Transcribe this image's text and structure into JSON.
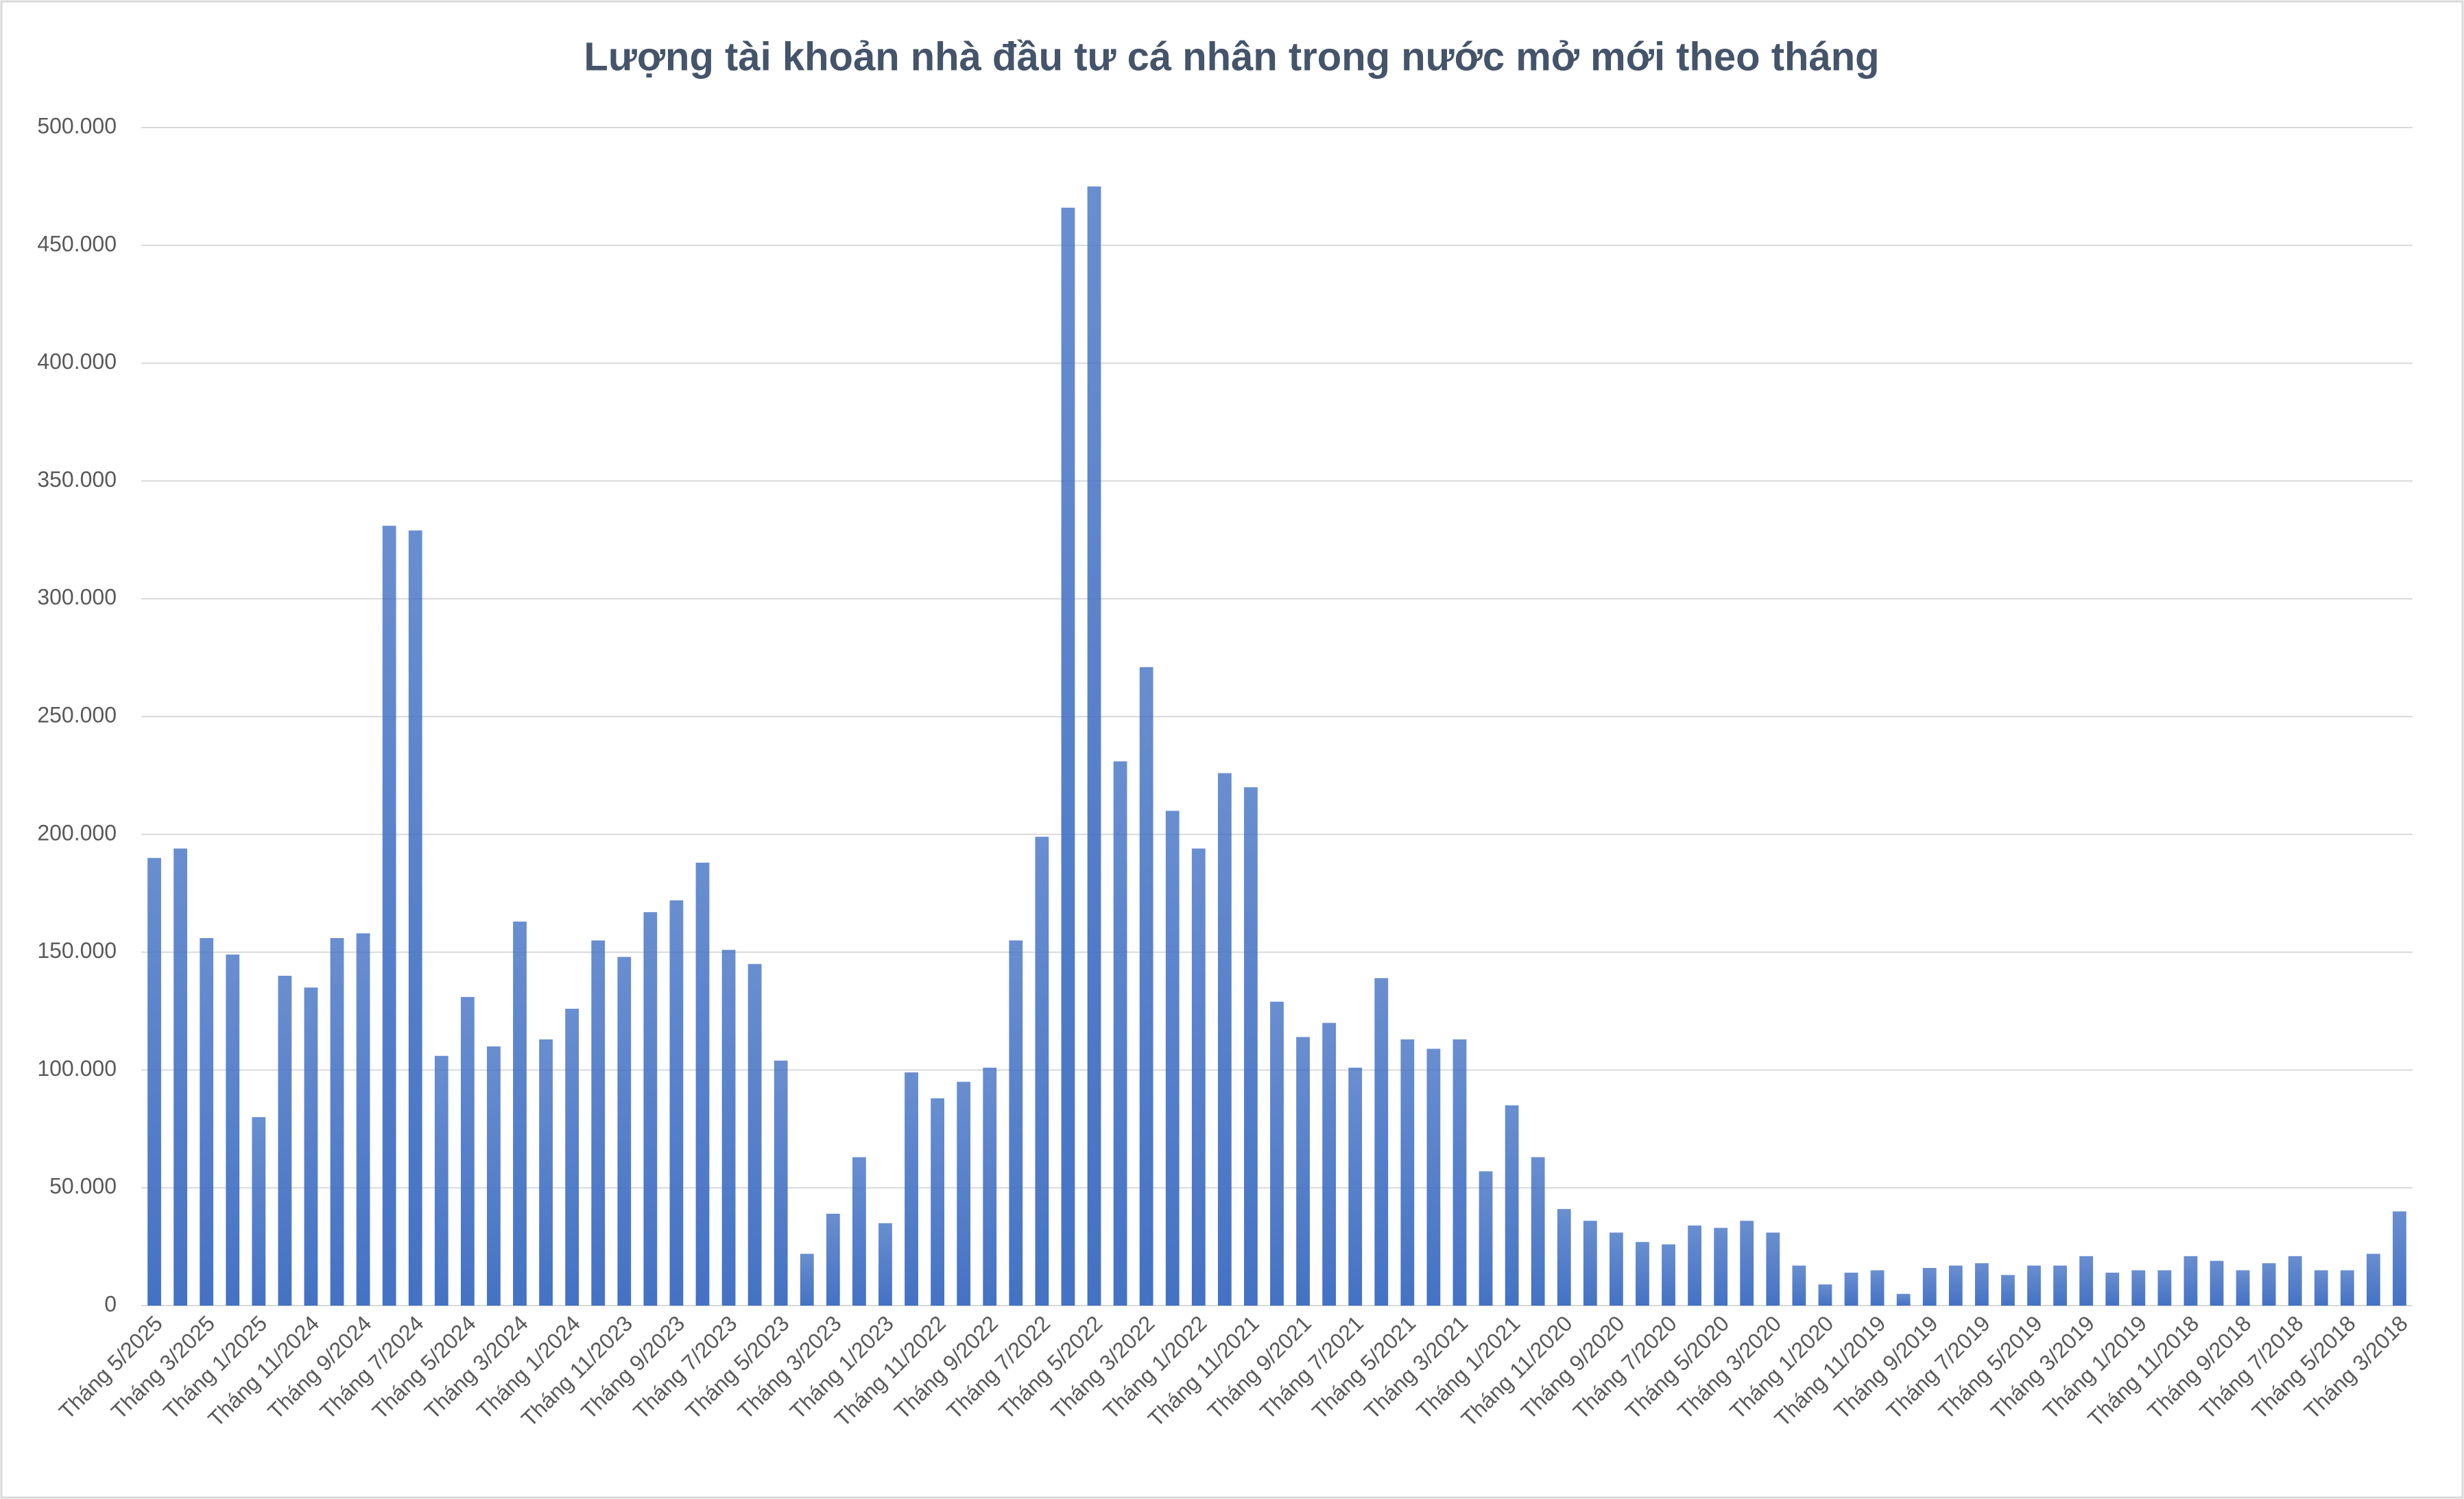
{
  "chart_data": {
    "type": "bar",
    "title": "Lượng tài khoản nhà đầu tư cá nhân trong nước mở mới theo tháng",
    "categories": [
      "Tháng 5/2025",
      null,
      "Tháng 3/2025",
      null,
      "Tháng 1/2025",
      null,
      "Tháng 11/2024",
      null,
      "Tháng 9/2024",
      null,
      "Tháng 7/2024",
      null,
      "Tháng 5/2024",
      null,
      "Tháng 3/2024",
      null,
      "Tháng 1/2024",
      null,
      "Tháng 11/2023",
      null,
      "Tháng 9/2023",
      null,
      "Tháng 7/2023",
      null,
      "Tháng 5/2023",
      null,
      "Tháng 3/2023",
      null,
      "Tháng 1/2023",
      null,
      "Tháng 11/2022",
      null,
      "Tháng 9/2022",
      null,
      "Tháng 7/2022",
      null,
      "Tháng 5/2022",
      null,
      "Tháng 3/2022",
      null,
      "Tháng 1/2022",
      null,
      "Tháng 11/2021",
      null,
      "Tháng 9/2021",
      null,
      "Tháng 7/2021",
      null,
      "Tháng 5/2021",
      null,
      "Tháng 3/2021",
      null,
      "Tháng 1/2021",
      null,
      "Tháng 11/2020",
      null,
      "Tháng 9/2020",
      null,
      "Tháng 7/2020",
      null,
      "Tháng 5/2020",
      null,
      "Tháng 3/2020",
      null,
      "Tháng 1/2020",
      null,
      "Tháng 11/2019",
      null,
      "Tháng 9/2019",
      null,
      "Tháng 7/2019",
      null,
      "Tháng 5/2019",
      null,
      "Tháng 3/2019",
      null,
      "Tháng 1/2019",
      null,
      "Tháng 11/2018",
      null,
      "Tháng 9/2018",
      null,
      "Tháng 7/2018",
      null,
      "Tháng 5/2018",
      null,
      "Tháng 3/2018"
    ],
    "values": [
      190000,
      194000,
      156000,
      149000,
      80000,
      140000,
      135000,
      156000,
      158000,
      331000,
      329000,
      106000,
      131000,
      110000,
      163000,
      113000,
      126000,
      155000,
      148000,
      167000,
      172000,
      188000,
      151000,
      145000,
      104000,
      22000,
      39000,
      63000,
      35000,
      99000,
      88000,
      95000,
      101000,
      155000,
      199000,
      466000,
      475000,
      231000,
      271000,
      210000,
      194000,
      226000,
      220000,
      129000,
      114000,
      120000,
      101000,
      139000,
      113000,
      109000,
      113000,
      57000,
      85000,
      63000,
      41000,
      36000,
      31000,
      27000,
      26000,
      34000,
      33000,
      36000,
      31000,
      17000,
      9000,
      14000,
      15000,
      5000,
      16000,
      17000,
      18000,
      13000,
      17000,
      17000,
      21000,
      14000,
      15000,
      15000,
      21000,
      19000,
      15000,
      18000,
      21000,
      15000,
      15000,
      22000,
      40000
    ],
    "color": "#4472c4",
    "ylim": [
      0,
      500000
    ],
    "yticks": [
      0,
      {
        "value": 50000,
        "label": "50.000"
      },
      {
        "value": 100000,
        "label": "100.000"
      },
      {
        "value": 150000,
        "label": "150.000"
      },
      {
        "value": 200000,
        "label": "200.000"
      },
      {
        "value": 250000,
        "label": "250.000"
      },
      {
        "value": 300000,
        "label": "300.000"
      },
      {
        "value": 350000,
        "label": "350.000"
      },
      {
        "value": 400000,
        "label": "400.000"
      },
      {
        "value": 450000,
        "label": "450.000"
      },
      {
        "value": 500000,
        "label": "500.000"
      }
    ],
    "grid": true
  }
}
